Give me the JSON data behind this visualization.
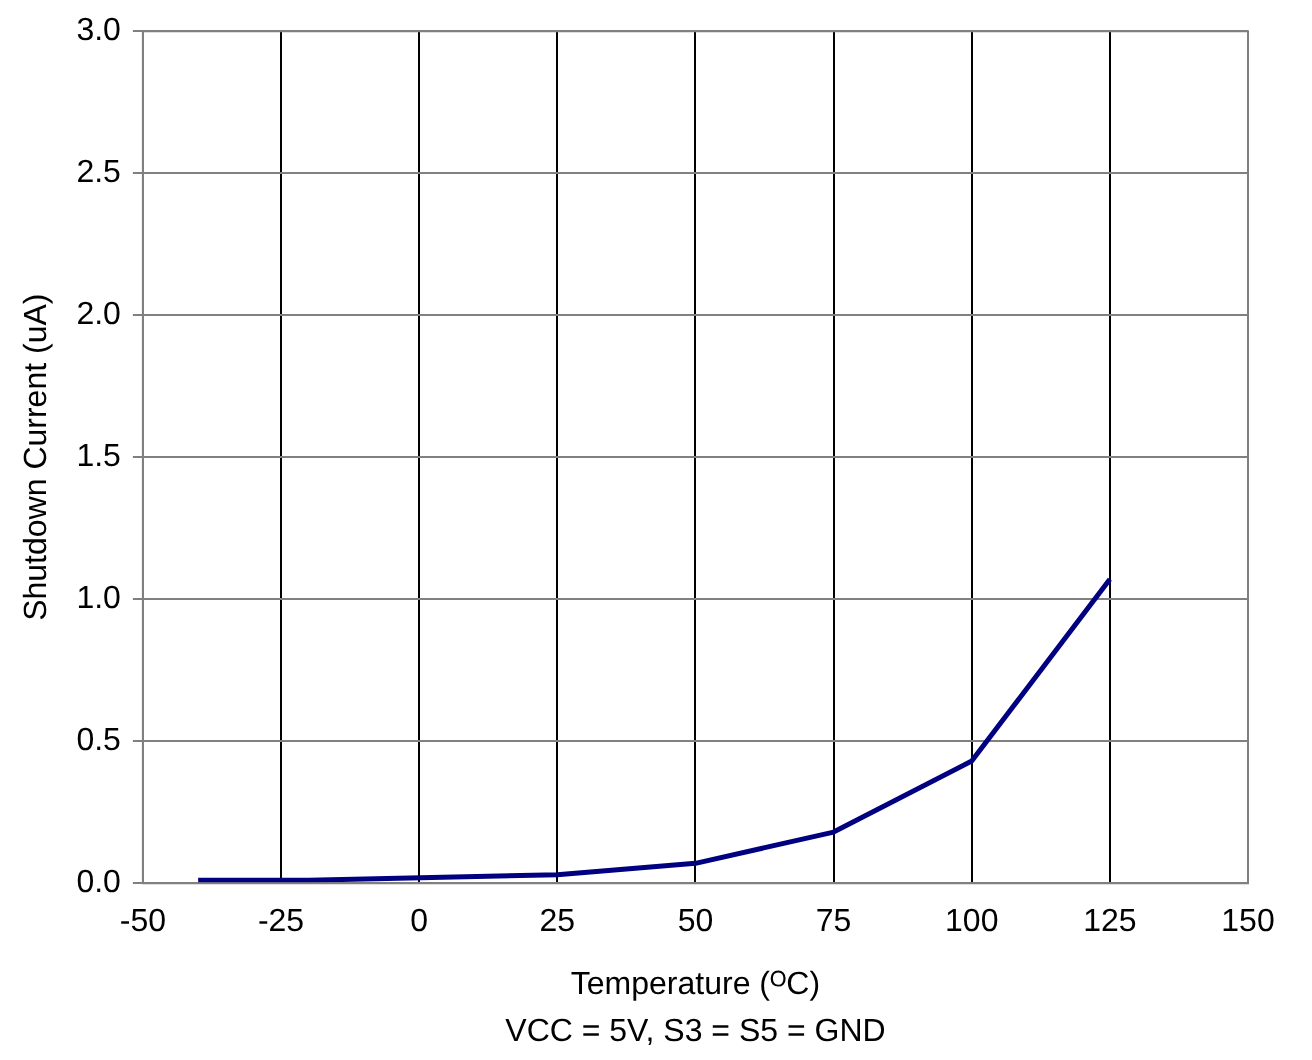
{
  "chart_data": {
    "type": "line",
    "xlabel": "Temperature (ᴼC)",
    "ylabel": "Shutdown Current (uA)",
    "annotations": [
      "VCC = 5V, S3 = S5 = GND"
    ],
    "x": [
      -40,
      -20,
      25,
      50,
      75,
      100,
      125
    ],
    "series": [
      {
        "color": "#000080",
        "values": [
          0.01,
          0.01,
          0.03,
          0.07,
          0.18,
          0.43,
          1.07
        ]
      }
    ],
    "xlim": [
      -50,
      150
    ],
    "xticks": [
      -50,
      -25,
      0,
      25,
      50,
      75,
      100,
      125,
      150
    ],
    "ylim": [
      0,
      3
    ],
    "yticks": [
      {
        "value": 0,
        "label": "0.0"
      },
      {
        "value": 0.5,
        "label": "0.5"
      },
      {
        "value": 1,
        "label": "1.0"
      },
      {
        "value": 1.5,
        "label": "1.5"
      },
      {
        "value": 2,
        "label": "2.0"
      },
      {
        "value": 2.5,
        "label": "2.5"
      },
      {
        "value": 3,
        "label": "3.0"
      }
    ],
    "grid": true,
    "legend": false,
    "marker": "none",
    "line_style": "solid"
  }
}
